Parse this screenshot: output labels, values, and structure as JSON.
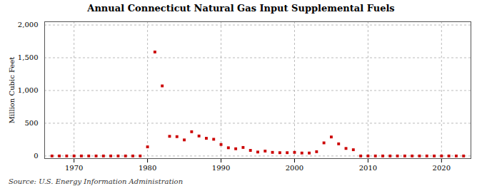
{
  "chart_data": {
    "type": "scatter",
    "title": "Annual Connecticut Natural Gas Input Supplemental Fuels",
    "ylabel": "Million Cubic Feet",
    "annotations": [
      "Source: U.S. Energy Information Administration"
    ],
    "color": "#cc0000",
    "marker": "square",
    "grid": true,
    "x": [
      1967,
      1968,
      1969,
      1970,
      1971,
      1972,
      1973,
      1974,
      1975,
      1976,
      1977,
      1978,
      1979,
      1980,
      1981,
      1982,
      1983,
      1984,
      1985,
      1986,
      1987,
      1988,
      1989,
      1990,
      1991,
      1992,
      1993,
      1994,
      1995,
      1996,
      1997,
      1998,
      1999,
      2000,
      2001,
      2002,
      2003,
      2004,
      2005,
      2006,
      2007,
      2008,
      2009,
      2010,
      2011,
      2012,
      2013,
      2014,
      2015,
      2016,
      2017,
      2018,
      2019,
      2020,
      2021,
      2022,
      2023
    ],
    "values": [
      0,
      0,
      0,
      0,
      0,
      0,
      0,
      0,
      0,
      0,
      0,
      0,
      0,
      139,
      1588,
      1070,
      300,
      295,
      245,
      370,
      305,
      270,
      255,
      175,
      125,
      110,
      130,
      85,
      60,
      75,
      55,
      50,
      50,
      55,
      45,
      45,
      65,
      200,
      290,
      185,
      115,
      95,
      0,
      0,
      0,
      0,
      0,
      0,
      0,
      0,
      0,
      0,
      0,
      0,
      0,
      0,
      0
    ],
    "xlim": [
      1966,
      2024
    ],
    "ylim": [
      -40,
      2050
    ],
    "xticks": [
      1970,
      1980,
      1990,
      2000,
      2010,
      2020
    ],
    "yticks": [
      0,
      500,
      {
        "value": 1000,
        "label": "1,000"
      },
      {
        "value": 1500,
        "label": "1,500"
      },
      {
        "value": 2000,
        "label": "2,000"
      }
    ]
  }
}
